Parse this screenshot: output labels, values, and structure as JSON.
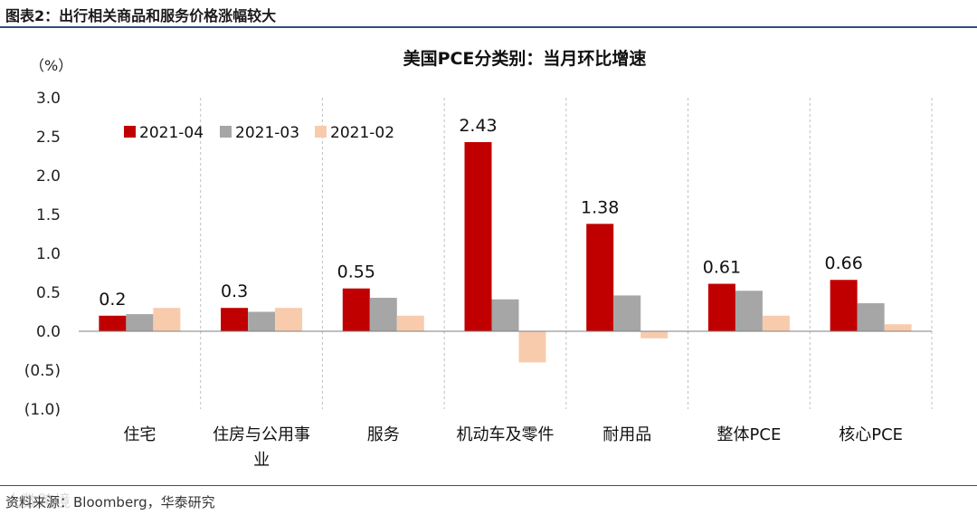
{
  "figure": {
    "title": "图表2：出行相关商品和服务价格涨幅较大",
    "source": "资料来源：Bloomberg，华泰研究",
    "watermark": "大数跨境"
  },
  "colors": {
    "series_2021_04": "#c00000",
    "series_2021_03": "#a6a6a6",
    "series_2021_02": "#f8cbad",
    "rule": "#2f4f7f",
    "grid": "#bfbfbf"
  },
  "chart_data": {
    "type": "bar",
    "title": "美国PCE分类别：当月环比增速",
    "unit_label": "（%）",
    "xlabel": "",
    "ylabel": "",
    "ylim": [
      -1.0,
      3.0
    ],
    "ytick_values": [
      3.0,
      2.5,
      2.0,
      1.5,
      1.0,
      0.5,
      0.0,
      -0.5,
      -1.0
    ],
    "ytick_labels": [
      "3.0",
      "2.5",
      "2.0",
      "1.5",
      "1.0",
      "0.5",
      "0.0",
      "(0.5)",
      "(1.0)"
    ],
    "categories": [
      [
        "住宅"
      ],
      [
        "住房与公用事",
        "业"
      ],
      [
        "服务"
      ],
      [
        "机动车及零件"
      ],
      [
        "耐用品"
      ],
      [
        "整体PCE"
      ],
      [
        "核心PCE"
      ]
    ],
    "series": [
      {
        "name": "2021-04",
        "values": [
          0.2,
          0.3,
          0.55,
          2.43,
          1.38,
          0.61,
          0.66
        ]
      },
      {
        "name": "2021-03",
        "values": [
          0.22,
          0.25,
          0.43,
          0.41,
          0.46,
          0.52,
          0.36
        ]
      },
      {
        "name": "2021-02",
        "values": [
          0.3,
          0.3,
          0.2,
          -0.4,
          -0.09,
          0.2,
          0.09
        ]
      }
    ],
    "data_labels": [
      "0.2",
      "0.3",
      "0.55",
      "2.43",
      "1.38",
      "0.61",
      "0.66"
    ],
    "legend_position": "top-left"
  }
}
